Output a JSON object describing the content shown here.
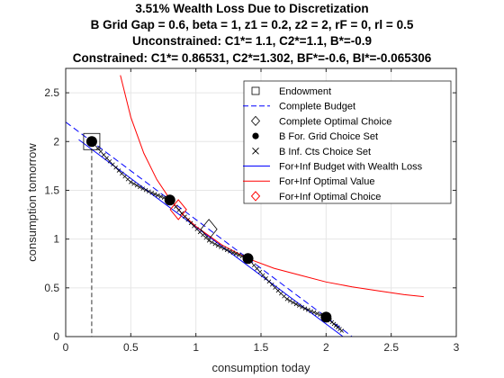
{
  "titles": [
    "3.51% Wealth Loss Due to Discretization",
    "B Grid Gap = 0.6, beta = 1, z1 = 0.2, z2 = 2, rF = 0, rl = 0.5",
    "Unconstrained: C1*= 1.1, C2*=1.1, B*=-0.9",
    "Constrained: C1*= 0.86531, C2*=1.302, BF*=-0.6, BI*=-0.065306"
  ],
  "colors": {
    "blue": "#0000ff",
    "red": "#ff0000",
    "black": "#000000",
    "grid": "#e6e6e6",
    "axis": "#262626"
  },
  "chart_data": {
    "type": "line",
    "xlabel": "consumption today",
    "ylabel": "consumption tomorrow",
    "xlim": [
      0,
      3
    ],
    "ylim": [
      0,
      2.75
    ],
    "xticks": [
      0,
      0.5,
      1,
      1.5,
      2,
      2.5,
      3
    ],
    "xtick_labels": [
      "0",
      "0.5",
      "1",
      "1.5",
      "2",
      "2.5",
      "3"
    ],
    "yticks": [
      0,
      0.5,
      1,
      1.5,
      2,
      2.5
    ],
    "ytick_labels": [
      "0",
      "0.5",
      "1",
      "1.5",
      "2",
      "2.5"
    ],
    "grid": true,
    "legend_position": "top-right",
    "endowment": {
      "x": 0.2,
      "y": 2
    },
    "complete_budget": {
      "x": [
        0,
        2.2
      ],
      "y": [
        2.2,
        0
      ]
    },
    "complete_optimal": {
      "x": 1.1,
      "y": 1.1
    },
    "grid_choice_set": {
      "x": [
        0.2,
        0.8,
        1.4,
        2.0
      ],
      "y": [
        2.0,
        1.4,
        0.8,
        0.2
      ]
    },
    "inf_budget": {
      "x": [
        0.1,
        2.15
      ],
      "y": [
        2.02,
        -0.02
      ]
    },
    "indifference_curve": {
      "x": [
        0.42,
        0.5,
        0.6,
        0.7,
        0.8,
        0.9,
        1.0,
        1.2,
        1.4,
        1.6,
        1.8,
        2.0,
        2.2,
        2.4,
        2.6,
        2.75
      ],
      "y": [
        2.68,
        2.25,
        1.88,
        1.61,
        1.41,
        1.25,
        1.13,
        0.94,
        0.8,
        0.7,
        0.63,
        0.56,
        0.51,
        0.47,
        0.43,
        0.41
      ]
    },
    "inf_optimal": {
      "x": 0.86531,
      "y": 1.302
    },
    "legend": [
      {
        "label": "Endowment",
        "marker": "square-icon"
      },
      {
        "label": "Complete Budget",
        "marker": "dashed-line-icon"
      },
      {
        "label": "Complete Optimal Choice",
        "marker": "diamond-icon"
      },
      {
        "label": "B For. Grid Choice Set",
        "marker": "filled-circle-icon"
      },
      {
        "label": "B Inf. Cts Choice Set",
        "marker": "cross-icon"
      },
      {
        "label": "For+Inf Budget with Wealth Loss",
        "marker": "blue-line-icon"
      },
      {
        "label": "For+Inf Optimal Value",
        "marker": "red-line-icon"
      },
      {
        "label": "For+Inf Optimal Choice",
        "marker": "red-diamond-icon"
      }
    ]
  }
}
